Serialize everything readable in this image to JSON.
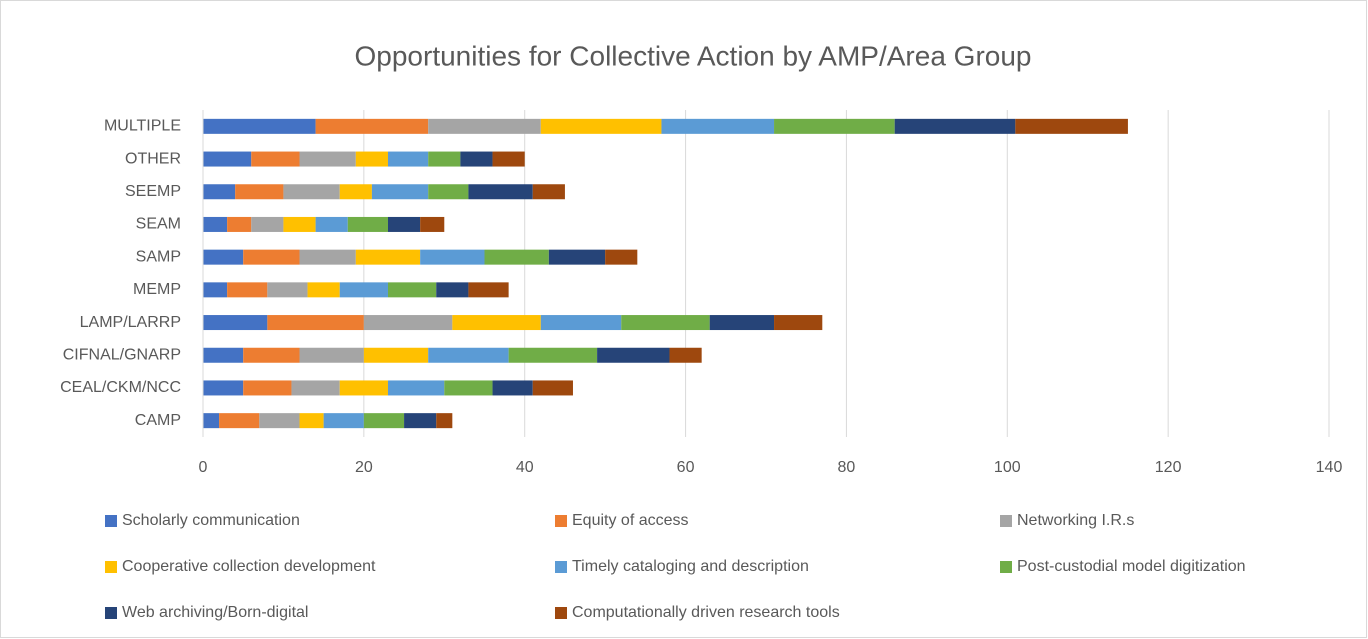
{
  "chart_data": {
    "type": "stacked-bar-horizontal",
    "title": "Opportunities for Collective Action by AMP/Area Group",
    "categories": [
      "MULTIPLE",
      "OTHER",
      "SEEMP",
      "SEAM",
      "SAMP",
      "MEMP",
      "LAMP/LARRP",
      "CIFNAL/GNARP",
      "CEAL/CKM/NCC",
      "CAMP"
    ],
    "series": [
      {
        "name": "Scholarly communication",
        "color": "#4472c4",
        "values": [
          14,
          6,
          4,
          3,
          5,
          3,
          8,
          5,
          5,
          2
        ]
      },
      {
        "name": "Equity of access",
        "color": "#ed7d31",
        "values": [
          14,
          6,
          6,
          3,
          7,
          5,
          12,
          7,
          6,
          5
        ]
      },
      {
        "name": "Networking I.R.s",
        "color": "#a5a5a5",
        "values": [
          14,
          7,
          7,
          4,
          7,
          5,
          11,
          8,
          6,
          5
        ]
      },
      {
        "name": "Cooperative collection development",
        "color": "#ffc000",
        "values": [
          15,
          4,
          4,
          4,
          8,
          4,
          11,
          8,
          6,
          3
        ]
      },
      {
        "name": "Timely cataloging and description",
        "color": "#5b9bd5",
        "values": [
          14,
          5,
          7,
          4,
          8,
          6,
          10,
          10,
          7,
          5
        ]
      },
      {
        "name": "Post-custodial model digitization",
        "color": "#70ad47",
        "values": [
          15,
          4,
          5,
          5,
          8,
          6,
          11,
          11,
          6,
          5
        ]
      },
      {
        "name": "Web archiving/Born-digital",
        "color": "#264478",
        "values": [
          15,
          4,
          8,
          4,
          7,
          4,
          8,
          9,
          5,
          4
        ]
      },
      {
        "name": "Computationally driven research tools",
        "color": "#9e480e",
        "values": [
          14,
          4,
          4,
          3,
          4,
          5,
          6,
          4,
          5,
          2
        ]
      }
    ],
    "xlim": [
      0,
      140
    ],
    "xticks": [
      0,
      20,
      40,
      60,
      80,
      100,
      120,
      140
    ],
    "grid": true,
    "legend": "bottom"
  }
}
